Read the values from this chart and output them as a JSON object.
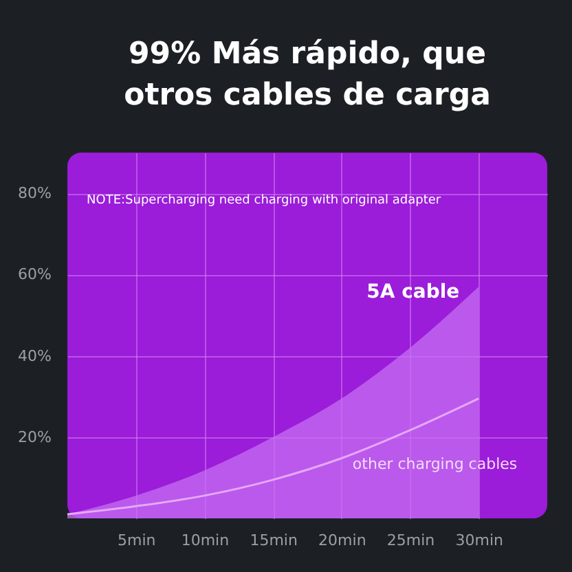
{
  "chart_data": {
    "type": "area",
    "title": "99% Más rápido, que otros cables de carga",
    "x": [
      0,
      5,
      10,
      15,
      20,
      25,
      30
    ],
    "series": [
      {
        "name": "5A cable",
        "color": "#c56ef2",
        "values": [
          1,
          5.6,
          11.8,
          20,
          29.5,
          42,
          57
        ]
      },
      {
        "name": "other charging cables",
        "type": "line",
        "color": "#e6a8f7",
        "values": [
          1,
          3,
          5.6,
          9.5,
          14.8,
          21.7,
          29.5
        ]
      }
    ],
    "xlim": [
      0,
      35
    ],
    "ylim": [
      0,
      90
    ],
    "xticks": [
      {
        "value": 5,
        "label": "5min"
      },
      {
        "value": 10,
        "label": "10min"
      },
      {
        "value": 15,
        "label": "15min"
      },
      {
        "value": 20,
        "label": "20min"
      },
      {
        "value": 25,
        "label": "25min"
      },
      {
        "value": 30,
        "label": "30min"
      }
    ],
    "yticks": [
      {
        "value": 20,
        "label": "20%"
      },
      {
        "value": 40,
        "label": "40%"
      },
      {
        "value": 60,
        "label": "60%"
      },
      {
        "value": 80,
        "label": "80%"
      }
    ],
    "grid": true,
    "annotations": [
      "NOTE:Supercharging need charging with original adapter"
    ]
  }
}
